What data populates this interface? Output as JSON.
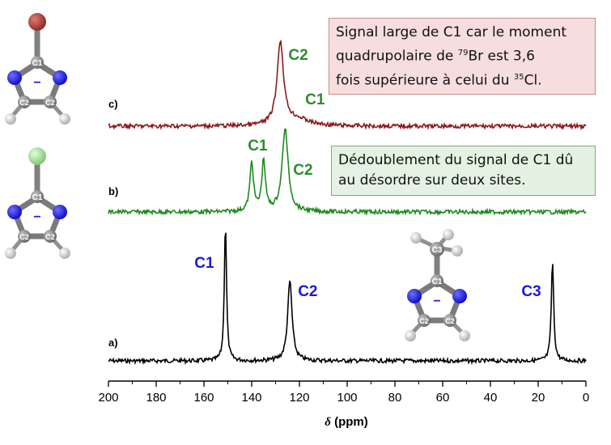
{
  "chart_data": {
    "type": "line",
    "xlabel_symbol": "δ",
    "xlabel_unit": " (ppm)",
    "xlim": [
      200,
      0
    ],
    "x_ticks": [
      "200",
      "180",
      "160",
      "140",
      "120",
      "100",
      "80",
      "60",
      "40",
      "20",
      "0"
    ],
    "series": [
      {
        "name": "a)",
        "color": "#000000",
        "peaks": [
          {
            "x": 151,
            "height": 1.0,
            "width": 0.55
          },
          {
            "x": 124,
            "height": 0.58,
            "width": 1.1
          },
          {
            "x": 14,
            "height": 0.72,
            "width": 0.6
          }
        ],
        "labels": [
          {
            "text": "C1",
            "x": 151
          },
          {
            "text": "C2",
            "x": 124
          },
          {
            "text": "C3",
            "x": 14
          }
        ]
      },
      {
        "name": "b)",
        "color": "#1e8a1e",
        "peaks": [
          {
            "x": 140,
            "height": 0.55,
            "width": 0.9
          },
          {
            "x": 135,
            "height": 0.57,
            "width": 0.9
          },
          {
            "x": 126,
            "height": 0.93,
            "width": 1.5
          }
        ],
        "labels": [
          {
            "text": "C1",
            "x": 137.5
          },
          {
            "text": "C2",
            "x": 126
          }
        ]
      },
      {
        "name": "c)",
        "color": "#8b1a1a",
        "peaks": [
          {
            "x": 128,
            "height": 1.0,
            "width": 1.6
          },
          {
            "x": 121,
            "height": 0.08,
            "width": 6
          }
        ],
        "labels": [
          {
            "text": "C2",
            "x": 128
          },
          {
            "text": "C1",
            "x": 121
          }
        ]
      }
    ]
  },
  "annotations": {
    "label_color_green": "#2e8b2e",
    "label_color_blue": "#1a1adc",
    "note_c": {
      "line1": "Signal large de C1 car le moment",
      "line2_a": "quadrupolaire de ",
      "line2_sup": "79",
      "line2_b": "Br est 3,6",
      "line3_a": "fois supérieure à celui du ",
      "line3_sup": "35",
      "line3_b": "Cl."
    },
    "note_b": {
      "line1": "Dédoublement du signal de C1 dû",
      "line2": "au désordre sur deux sites."
    }
  },
  "molecules": {
    "bromo": {
      "atom_labels": [
        "C1",
        "C2",
        "C2"
      ],
      "charge": "−",
      "substituent_color": "#b84b44"
    },
    "chloro": {
      "atom_labels": [
        "C1",
        "C2",
        "C2"
      ],
      "charge": "−",
      "substituent_color": "#a8e29a"
    },
    "methyl": {
      "atom_labels": [
        "C3",
        "C1",
        "C2",
        "C2"
      ],
      "charge": "−"
    }
  }
}
